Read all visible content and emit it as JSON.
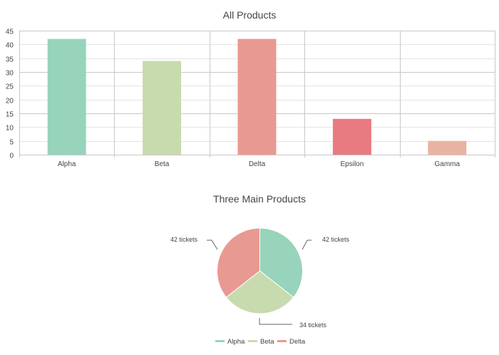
{
  "chart_data": [
    {
      "type": "bar",
      "title": "All Products",
      "categories": [
        "Alpha",
        "Beta",
        "Delta",
        "Epsilon",
        "Gamma"
      ],
      "values": [
        42,
        34,
        42,
        13,
        5
      ],
      "colors": [
        "#97d4bb",
        "#c7dbae",
        "#e89992",
        "#e77b81",
        "#e9b3a3"
      ],
      "xlabel": "",
      "ylabel": "",
      "ylim": [
        0,
        45
      ],
      "yticks": [
        0,
        5,
        10,
        15,
        20,
        25,
        30,
        35,
        40,
        45
      ],
      "grid": true,
      "legend": "none"
    },
    {
      "type": "pie",
      "title": "Three Main Products",
      "categories": [
        "Alpha",
        "Beta",
        "Delta"
      ],
      "values": [
        42,
        34,
        42
      ],
      "colors": [
        "#97d4bb",
        "#c7dbae",
        "#e89992"
      ],
      "data_labels": [
        "42 tickets",
        "34 tickets",
        "42 tickets"
      ],
      "legend": "bottom"
    }
  ]
}
